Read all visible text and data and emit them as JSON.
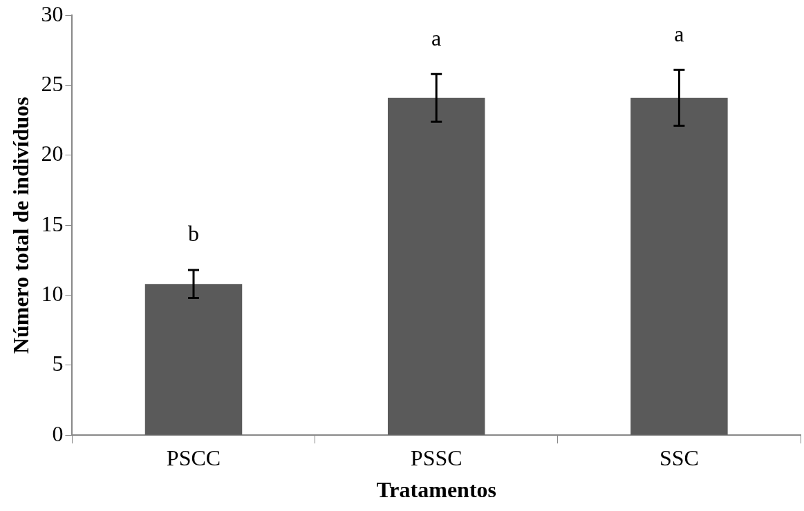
{
  "chart_data": {
    "type": "bar",
    "xlabel": "Tratamentos",
    "ylabel": "Número total de indivíduos",
    "categories": [
      "PSCC",
      "PSSC",
      "SSC"
    ],
    "values": [
      10.8,
      24.1,
      24.1
    ],
    "errors": [
      1.0,
      1.7,
      2.0
    ],
    "color": "#5a5a5a",
    "ylim": [
      0,
      30
    ],
    "yticks": [
      0,
      5,
      10,
      15,
      20,
      25,
      30
    ],
    "grid": false,
    "legend": false,
    "annotations": [
      "b",
      "a",
      "a"
    ]
  }
}
